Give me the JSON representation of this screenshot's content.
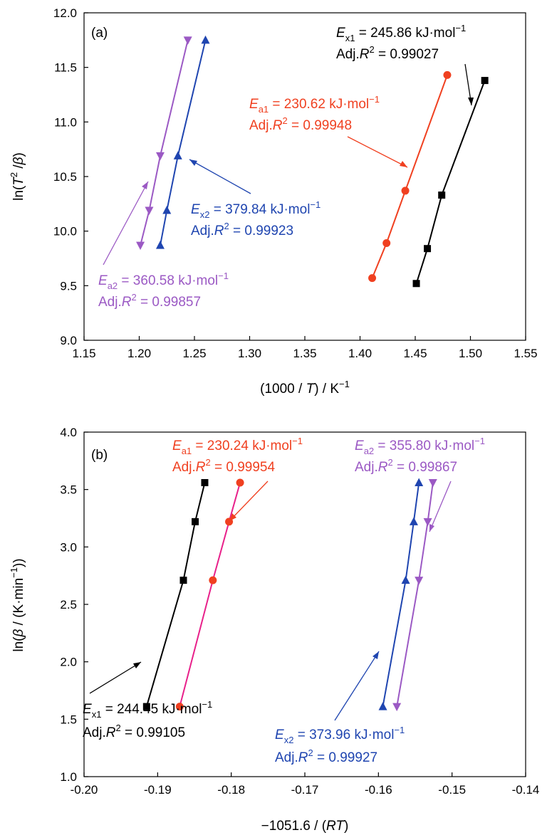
{
  "chart_data": [
    {
      "type": "scatter",
      "panel_label": "(a)",
      "xlabel_parts": {
        "pre": "(1000 / ",
        "var": "T",
        "post": ") / K",
        "sup": "−1"
      },
      "ylabel_parts": {
        "pre": "ln(",
        "var1": "T",
        "sup": "2",
        "mid": " /",
        "var2": "β",
        "post": ")"
      },
      "xlim": [
        1.15,
        1.55
      ],
      "ylim": [
        9.0,
        12.0
      ],
      "xticks": [
        "1.15",
        "1.20",
        "1.25",
        "1.30",
        "1.35",
        "1.40",
        "1.45",
        "1.50",
        "1.55"
      ],
      "yticks": [
        "9.0",
        "9.5",
        "10.0",
        "10.5",
        "11.0",
        "11.5",
        "12.0"
      ],
      "series": [
        {
          "key": "Ex1",
          "color": "#000000",
          "marker": "square",
          "x": [
            1.451,
            1.461,
            1.474,
            1.513
          ],
          "y": [
            9.52,
            9.84,
            10.33,
            11.38
          ]
        },
        {
          "key": "Ea1",
          "color": "#f04020",
          "marker": "circle",
          "x": [
            1.411,
            1.424,
            1.441,
            1.479
          ],
          "y": [
            9.57,
            9.89,
            10.37,
            11.43
          ]
        },
        {
          "key": "Ex2",
          "color": "#1f45b0",
          "marker": "triangle-up",
          "x": [
            1.219,
            1.225,
            1.235,
            1.26
          ],
          "y": [
            9.87,
            10.19,
            10.69,
            11.75
          ]
        },
        {
          "key": "Ea2",
          "color": "#9b59c4",
          "marker": "triangle-down",
          "x": [
            1.201,
            1.209,
            1.219,
            1.244
          ],
          "y": [
            9.87,
            10.19,
            10.69,
            11.75
          ]
        }
      ],
      "annotations": [
        {
          "key": "Ex1",
          "color": "#000000",
          "E_sub": "x1",
          "E_value": " = 245.86 kJ·mol",
          "E_exp": "−1",
          "R2_value": " = 0.99027"
        },
        {
          "key": "Ea1",
          "color": "#f04020",
          "E_sub": "a1",
          "E_value": " = 230.62 kJ·mol",
          "E_exp": "−1",
          "R2_value": " = 0.99948"
        },
        {
          "key": "Ex2",
          "color": "#1f45b0",
          "E_sub": "x2",
          "E_value": " = 379.84 kJ·mol",
          "E_exp": "−1",
          "R2_value": " = 0.99923"
        },
        {
          "key": "Ea2",
          "color": "#9b59c4",
          "E_sub": "a2",
          "E_value": " = 360.58 kJ·mol",
          "E_exp": "−1",
          "R2_value": " = 0.99857"
        }
      ]
    },
    {
      "type": "scatter",
      "panel_label": "(b)",
      "xlabel_parts": {
        "pre": "−1051.6 / (",
        "var": "RT",
        "post": ")"
      },
      "ylabel_parts": {
        "pre": "ln(",
        "var": "β",
        "post": " / (K·min",
        "sup": "−1",
        "end": "))"
      },
      "xlim": [
        -0.2,
        -0.14
      ],
      "ylim": [
        1.0,
        4.0
      ],
      "xticks": [
        "-0.20",
        "-0.19",
        "-0.18",
        "-0.17",
        "-0.16",
        "-0.15",
        "-0.14"
      ],
      "yticks": [
        "1.0",
        "1.5",
        "2.0",
        "2.5",
        "3.0",
        "3.5",
        "4.0"
      ],
      "series": [
        {
          "key": "Ex1",
          "color": "#000000",
          "marker": "square",
          "x": [
            -0.1915,
            -0.1865,
            -0.1849,
            -0.1836
          ],
          "y": [
            1.61,
            2.71,
            3.22,
            3.56
          ]
        },
        {
          "key": "Ea1",
          "color": "#e8208a",
          "marker": "circle",
          "marker_color": "#f04020",
          "x": [
            -0.187,
            -0.1825,
            -0.1803,
            -0.1788
          ],
          "y": [
            1.61,
            2.71,
            3.22,
            3.56
          ]
        },
        {
          "key": "Ex2",
          "color": "#1f45b0",
          "marker": "triangle-up",
          "x": [
            -0.1594,
            -0.1563,
            -0.1552,
            -0.1545
          ],
          "y": [
            1.61,
            2.71,
            3.22,
            3.56
          ]
        },
        {
          "key": "Ea2",
          "color": "#9b59c4",
          "marker": "triangle-down",
          "x": [
            -0.1575,
            -0.1545,
            -0.1533,
            -0.1526
          ],
          "y": [
            1.61,
            2.71,
            3.22,
            3.56
          ]
        }
      ],
      "annotations": [
        {
          "key": "Ea1",
          "color": "#f04020",
          "E_sub": "a1",
          "E_value": " = 230.24 kJ·mol",
          "E_exp": "−1",
          "R2_value": " = 0.99954"
        },
        {
          "key": "Ea2",
          "color": "#9b59c4",
          "E_sub": "a2",
          "E_value": " = 355.80 kJ·mol",
          "E_exp": "−1",
          "R2_value": " = 0.99867"
        },
        {
          "key": "Ex1",
          "color": "#000000",
          "E_sub": "x1",
          "E_value": " = 244.45 kJ·mol",
          "E_exp": "−1",
          "R2_value": " = 0.99105"
        },
        {
          "key": "Ex2",
          "color": "#1f45b0",
          "E_sub": "x2",
          "E_value": " = 373.96 kJ·mol",
          "E_exp": "−1",
          "R2_value": " = 0.99927"
        }
      ]
    }
  ]
}
